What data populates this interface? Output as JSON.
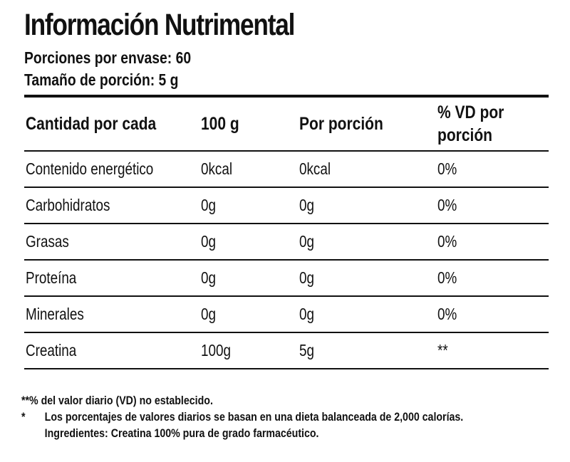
{
  "title": "Información Nutrimental",
  "servings_per_container": "Porciones por envase: 60",
  "serving_size": "Tamaño de porción: 5 g",
  "table": {
    "headers": [
      "Cantidad por cada",
      "100 g",
      "Por porción",
      "% VD por porción"
    ],
    "rows": [
      {
        "name": "Contenido energético",
        "per100": "0kcal",
        "per_serving": "0kcal",
        "dv": "0%"
      },
      {
        "name": "Carbohidratos",
        "per100": "0g",
        "per_serving": "0g",
        "dv": "0%"
      },
      {
        "name": "Grasas",
        "per100": "0g",
        "per_serving": "0g",
        "dv": "0%"
      },
      {
        "name": "Proteína",
        "per100": "0g",
        "per_serving": "0g",
        "dv": "0%"
      },
      {
        "name": "Minerales",
        "per100": "0g",
        "per_serving": "0g",
        "dv": "0%"
      },
      {
        "name": "Creatina",
        "per100": "100g",
        "per_serving": "5g",
        "dv": "**"
      }
    ]
  },
  "footnotes": {
    "not_established": "**% del valor diario (VD) no establecido.",
    "asterisk_mark": "*",
    "daily_values": "Los porcentajes de valores diarios se basan en una dieta balanceada de 2,000 calorías.",
    "ingredients": "Ingredientes: Creatina 100% pura de grado farmacéutico."
  }
}
